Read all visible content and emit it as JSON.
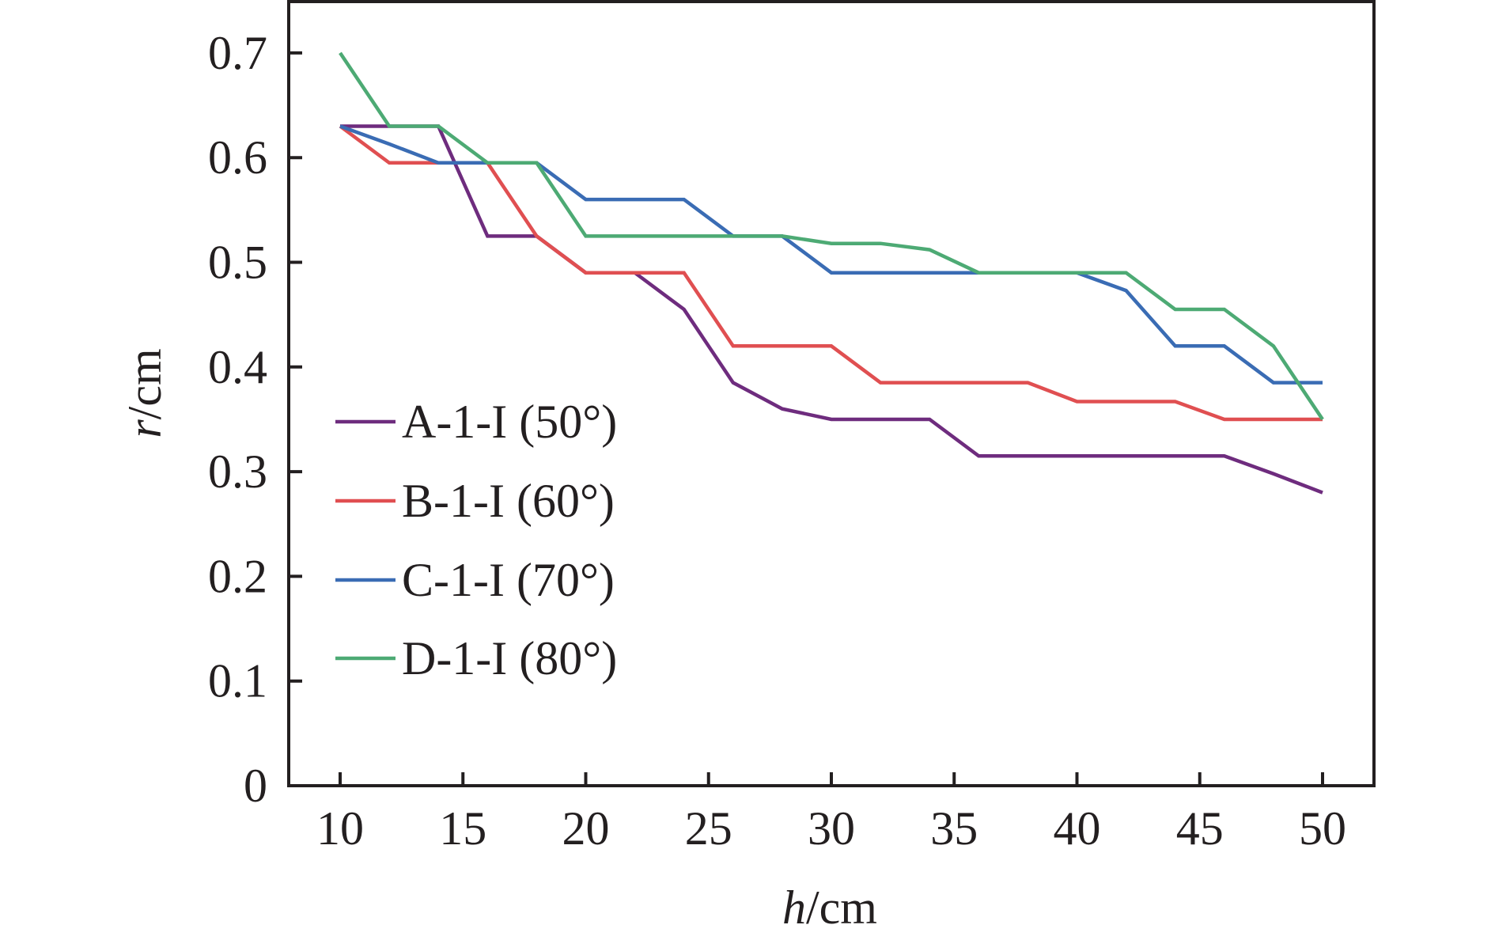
{
  "chart_data": {
    "type": "line",
    "title": "",
    "xlabel": {
      "italic": "h",
      "rest": "/cm"
    },
    "ylabel": {
      "italic": "r",
      "rest": "/cm"
    },
    "xlim": [
      8,
      52
    ],
    "ylim": [
      0,
      0.75
    ],
    "x_ticks": [
      10,
      15,
      20,
      25,
      30,
      35,
      40,
      45,
      50
    ],
    "x_tick_labels": [
      "10",
      "15",
      "20",
      "25",
      "30",
      "35",
      "40",
      "45",
      "50"
    ],
    "y_ticks": [
      0,
      0.1,
      0.2,
      0.3,
      0.4,
      0.5,
      0.6,
      0.7
    ],
    "y_tick_labels": [
      "0",
      "0.1",
      "0.2",
      "0.3",
      "0.4",
      "0.5",
      "0.6",
      "0.7"
    ],
    "grid": false,
    "legend_position": "left-center",
    "x": [
      10,
      12,
      14,
      16,
      18,
      20,
      22,
      24,
      26,
      28,
      30,
      32,
      34,
      36,
      38,
      40,
      42,
      44,
      46,
      48,
      50
    ],
    "series": [
      {
        "name": "A-1-I (50°)",
        "color": "#6e2c7e",
        "values": [
          0.63,
          0.63,
          0.63,
          0.525,
          0.525,
          0.49,
          0.49,
          0.455,
          0.385,
          0.36,
          0.35,
          0.35,
          0.35,
          0.315,
          0.315,
          0.315,
          0.315,
          0.315,
          0.315,
          0.298,
          0.28
        ]
      },
      {
        "name": "B-1-I (60°)",
        "color": "#e04f51",
        "values": [
          0.63,
          0.595,
          0.595,
          0.595,
          0.525,
          0.49,
          0.49,
          0.49,
          0.42,
          0.42,
          0.42,
          0.385,
          0.385,
          0.385,
          0.385,
          0.367,
          0.367,
          0.367,
          0.35,
          0.35,
          0.35
        ]
      },
      {
        "name": "C-1-I (70°)",
        "color": "#3a6cb4",
        "values": [
          0.63,
          0.613,
          0.595,
          0.595,
          0.595,
          0.56,
          0.56,
          0.56,
          0.525,
          0.525,
          0.49,
          0.49,
          0.49,
          0.49,
          0.49,
          0.49,
          0.473,
          0.42,
          0.42,
          0.385,
          0.385
        ]
      },
      {
        "name": "D-1-I (80°)",
        "color": "#4daa74",
        "values": [
          0.7,
          0.63,
          0.63,
          0.595,
          0.595,
          0.525,
          0.525,
          0.525,
          0.525,
          0.525,
          0.518,
          0.518,
          0.512,
          0.49,
          0.49,
          0.49,
          0.49,
          0.455,
          0.455,
          0.42,
          0.35
        ]
      }
    ]
  }
}
